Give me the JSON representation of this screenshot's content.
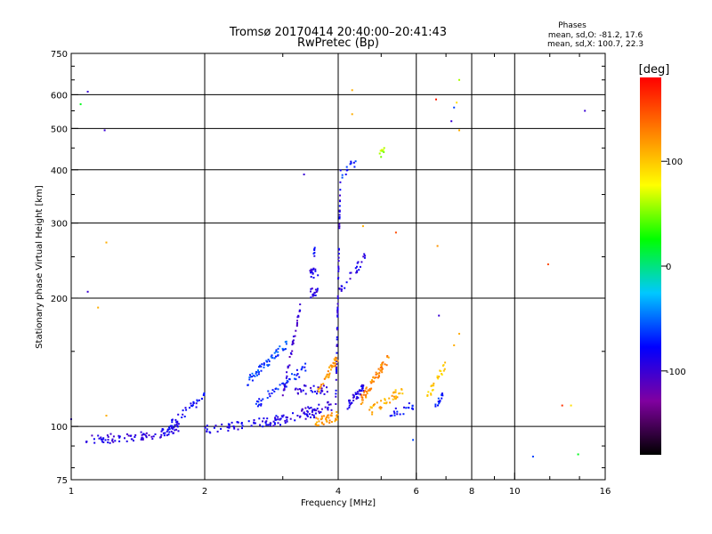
{
  "chart_data": {
    "type": "scatter",
    "title": "Tromsø 20170414 20:40:00–20:41:43",
    "subtitle": "RwPretec (Bp)",
    "xlabel": "Frequency [MHz]",
    "ylabel": "Stationary phase Virtual Height [km]",
    "x_scale": "log",
    "y_scale": "log",
    "xlim": [
      1,
      16
    ],
    "ylim": [
      75,
      750
    ],
    "x_ticks": [
      1,
      2,
      4,
      6,
      8,
      10,
      16
    ],
    "y_ticks": [
      75,
      100,
      200,
      300,
      400,
      500,
      600,
      750
    ],
    "grid": true,
    "stats": {
      "heading": "Phases",
      "line_o": "mean, sd,O: -81.2, 17.6",
      "line_x": "mean, sd,X: 100.7, 22.3"
    },
    "colorbar": {
      "label": "[deg]",
      "min": -180,
      "max": 180,
      "ticks": [
        100,
        0,
        -100
      ],
      "colors": [
        "#000000",
        "#8000a0",
        "#0000ff",
        "#00c8ff",
        "#00ff00",
        "#ffff00",
        "#ff8000",
        "#ff0000"
      ]
    },
    "series": [
      {
        "points": [
          {
            "x": 1.08,
            "y": 93,
            "phase": -95,
            "n": 60,
            "x2": 1.55,
            "y2": 95
          },
          {
            "x": 1.55,
            "y": 95,
            "phase": -90,
            "n": 30,
            "x2": 1.75,
            "y2": 100
          },
          {
            "x": 1.65,
            "y": 100,
            "phase": -80,
            "n": 40,
            "x2": 2.0,
            "y2": 118
          },
          {
            "x": 2.0,
            "y": 98,
            "phase": -85,
            "n": 60,
            "x2": 3.0,
            "y2": 104
          },
          {
            "x": 2.8,
            "y": 102,
            "phase": -95,
            "n": 40,
            "x2": 3.6,
            "y2": 108
          },
          {
            "x": 2.5,
            "y": 128,
            "phase": -60,
            "n": 55,
            "x2": 3.1,
            "y2": 158
          },
          {
            "x": 2.6,
            "y": 112,
            "phase": -70,
            "n": 45,
            "x2": 3.4,
            "y2": 138
          },
          {
            "x": 3.0,
            "y": 118,
            "phase": -100,
            "n": 40,
            "x2": 3.3,
            "y2": 195
          },
          {
            "x": 3.2,
            "y": 122,
            "phase": -95,
            "n": 30,
            "x2": 3.8,
            "y2": 122
          },
          {
            "x": 3.3,
            "y": 108,
            "phase": -95,
            "n": 30,
            "x2": 3.9,
            "y2": 112
          },
          {
            "x": 3.45,
            "y": 205,
            "phase": -95,
            "n": 15,
            "x2": 3.6,
            "y2": 208
          },
          {
            "x": 3.45,
            "y": 228,
            "phase": -90,
            "n": 15,
            "x2": 3.6,
            "y2": 230
          },
          {
            "x": 3.5,
            "y": 255,
            "phase": -80,
            "n": 6,
            "x2": 3.55,
            "y2": 258
          },
          {
            "x": 3.95,
            "y": 115,
            "phase": -90,
            "n": 60,
            "x2": 4.05,
            "y2": 400
          },
          {
            "x": 4.0,
            "y": 205,
            "phase": -90,
            "n": 25,
            "x2": 4.6,
            "y2": 250
          },
          {
            "x": 4.05,
            "y": 390,
            "phase": -70,
            "n": 12,
            "x2": 4.4,
            "y2": 420
          },
          {
            "x": 3.55,
            "y": 102,
            "phase": 120,
            "n": 40,
            "x2": 4.0,
            "y2": 106
          },
          {
            "x": 3.6,
            "y": 122,
            "phase": 120,
            "n": 40,
            "x2": 4.0,
            "y2": 145
          },
          {
            "x": 4.2,
            "y": 112,
            "phase": -90,
            "n": 40,
            "x2": 4.6,
            "y2": 125
          },
          {
            "x": 4.5,
            "y": 115,
            "phase": 125,
            "n": 60,
            "x2": 5.2,
            "y2": 145
          },
          {
            "x": 4.7,
            "y": 108,
            "phase": 110,
            "n": 40,
            "x2": 5.6,
            "y2": 122
          },
          {
            "x": 4.95,
            "y": 435,
            "phase": 60,
            "n": 8,
            "x2": 5.1,
            "y2": 440
          },
          {
            "x": 5.2,
            "y": 106,
            "phase": -80,
            "n": 20,
            "x2": 5.9,
            "y2": 112
          },
          {
            "x": 6.3,
            "y": 115,
            "phase": 100,
            "n": 25,
            "x2": 7.0,
            "y2": 140
          },
          {
            "x": 6.6,
            "y": 110,
            "phase": -70,
            "n": 15,
            "x2": 6.9,
            "y2": 118
          },
          {
            "x": 1.0,
            "y": 104,
            "phase": -100
          },
          {
            "x": 1.05,
            "y": 570,
            "phase": 20
          },
          {
            "x": 1.09,
            "y": 610,
            "phase": -100
          },
          {
            "x": 1.09,
            "y": 207,
            "phase": -100
          },
          {
            "x": 1.15,
            "y": 190,
            "phase": 110
          },
          {
            "x": 1.19,
            "y": 495,
            "phase": -100
          },
          {
            "x": 1.2,
            "y": 270,
            "phase": 110
          },
          {
            "x": 1.2,
            "y": 106,
            "phase": 110
          },
          {
            "x": 3.35,
            "y": 390,
            "phase": -100
          },
          {
            "x": 4.3,
            "y": 615,
            "phase": 110
          },
          {
            "x": 4.3,
            "y": 540,
            "phase": 110
          },
          {
            "x": 4.55,
            "y": 295,
            "phase": 110
          },
          {
            "x": 5.4,
            "y": 285,
            "phase": 150
          },
          {
            "x": 5.9,
            "y": 93,
            "phase": -60
          },
          {
            "x": 6.65,
            "y": 585,
            "phase": 170
          },
          {
            "x": 6.7,
            "y": 265,
            "phase": 120
          },
          {
            "x": 6.75,
            "y": 182,
            "phase": -100
          },
          {
            "x": 7.2,
            "y": 520,
            "phase": -100
          },
          {
            "x": 7.3,
            "y": 560,
            "phase": -60
          },
          {
            "x": 7.4,
            "y": 575,
            "phase": 90
          },
          {
            "x": 7.5,
            "y": 650,
            "phase": 60
          },
          {
            "x": 7.5,
            "y": 495,
            "phase": 110
          },
          {
            "x": 7.5,
            "y": 165,
            "phase": 110
          },
          {
            "x": 7.3,
            "y": 155,
            "phase": 110
          },
          {
            "x": 11.0,
            "y": 85,
            "phase": -60
          },
          {
            "x": 11.9,
            "y": 240,
            "phase": 150
          },
          {
            "x": 12.8,
            "y": 112,
            "phase": 160
          },
          {
            "x": 13.4,
            "y": 112,
            "phase": 90
          },
          {
            "x": 13.9,
            "y": 86,
            "phase": 20
          },
          {
            "x": 14.4,
            "y": 550,
            "phase": -100
          }
        ]
      }
    ]
  }
}
